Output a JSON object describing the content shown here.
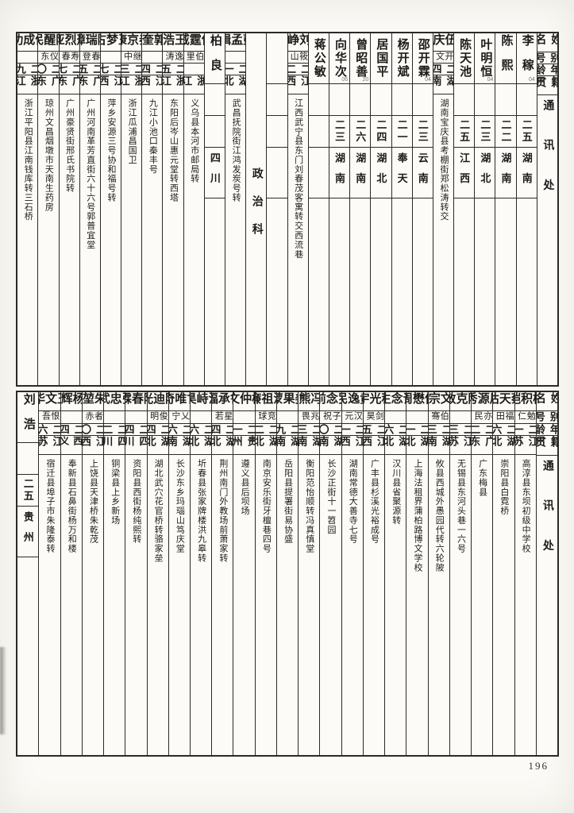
{
  "page": {
    "page_number": "196"
  },
  "headers": [
    "姓名",
    "别号",
    "年龄",
    "籍贯",
    "通讯处"
  ],
  "section": {
    "label": "政治科"
  },
  "top_table": {
    "columns": [
      {
        "name": "李稼",
        "mark": "04",
        "alias": "",
        "age": "二五",
        "native": "湖南",
        "address": ""
      },
      {
        "name": "陈熙",
        "alias": "",
        "age": "二二",
        "native": "湖南",
        "address": ""
      },
      {
        "name": "叶明恒",
        "mark": "04",
        "alias": "",
        "age": "二三",
        "native": "湖北",
        "address": ""
      },
      {
        "name": "陈天池",
        "alias": "",
        "age": "二五",
        "native": "江西",
        "address": ""
      },
      {
        "name": "伍庆",
        "alias": "开文",
        "age": "二四",
        "native": "湖南",
        "address": "湖南宝庆县考棚街郑松涛转交"
      },
      {
        "name": "邵开霖",
        "mark": "04",
        "alias": "",
        "age": "二三",
        "native": "云南",
        "address": ""
      },
      {
        "name": "杨开斌",
        "alias": "",
        "age": "二一",
        "native": "奉天",
        "address": ""
      },
      {
        "name": "居国平",
        "alias": "",
        "age": "二四",
        "native": "湖北",
        "address": ""
      },
      {
        "name": "曾昭善",
        "mark": "20",
        "alias": "",
        "age": "二六",
        "native": "湖南",
        "address": ""
      },
      {
        "name": "向华次",
        "mark": "06",
        "alias": "",
        "age": "二三",
        "native": "湖南",
        "address": ""
      },
      {
        "name": "蒋公敏",
        "alias": "",
        "age": "",
        "native": "",
        "address": ""
      },
      {
        "name": "刘峥",
        "alias": "筱山",
        "age": "二二",
        "native": "江西",
        "address": "江西武宁县东门刘春茂客寓转交西流巷"
      },
      {
        "type": "blank"
      },
      {
        "type": "divider",
        "label": "政治科"
      },
      {
        "name": "彭孟缉",
        "alias": "",
        "age": "二一",
        "native": "湖北",
        "address": "武昌抚院街江鸿发炭号转"
      },
      {
        "name": "柏良",
        "alias": "",
        "age": "",
        "native": "四川",
        "address": ""
      },
      {
        "name": "何霆威",
        "alias": "伯里",
        "age": "",
        "native": "浙江",
        "address": "义乌县本河市邮局转"
      },
      {
        "name": "王浩",
        "alias": "逸涛",
        "age": "二五",
        "native": "浙江",
        "address": "东阳后岑山惠元堂转西塔"
      },
      {
        "name": "郭奎",
        "alias": "",
        "age": "二四",
        "native": "江西",
        "address": "九江小池口秦丰号"
      },
      {
        "name": "秦京康",
        "alias": "继中",
        "age": "二三",
        "native": "浙江",
        "address": "浙江瓜浦昌国卫"
      },
      {
        "name": "王梦古",
        "alias": "",
        "age": "二七",
        "native": "江西",
        "address": "萍乡安源三号协和福号转"
      },
      {
        "name": "陈瑞璋",
        "alias": "春登",
        "age": "二五",
        "native": "广东",
        "address": "广州河南革芳直街六十六号郭普宜堂"
      },
      {
        "name": "邢烈亚",
        "alias": "寿春",
        "age": "二七",
        "native": "广东",
        "address": "广州豪贤街邢氏书院转"
      },
      {
        "name": "陈醒民",
        "alias": "仪东",
        "age": "二〇",
        "native": "广东",
        "address": "琼州文昌烟墩市天南生药房"
      },
      {
        "name": "何成功",
        "alias": "",
        "age": "二九",
        "native": "浙江",
        "address": "浙江平阳县江南钱库转三石桥"
      }
    ]
  },
  "bottom_table": {
    "columns": [
      {
        "name": "杨积恺",
        "alias": "勉仁",
        "age": "二一",
        "native": "江苏",
        "address": "高淳县东坝初级中学校"
      },
      {
        "name": "蔡天枯",
        "alias": "福田",
        "age": "二六",
        "native": "湖北",
        "address": "崇阳县白霓桥"
      },
      {
        "name": "周源秀",
        "alias": "亦民",
        "age": "二二",
        "native": "广东",
        "address": "广东梅县"
      },
      {
        "name": "陈克敏",
        "alias": "",
        "age": "二三",
        "native": "江苏",
        "address": "无锡县东河头巷一六号"
      },
      {
        "name": "文宗",
        "alias": "伯骞",
        "age": "二三",
        "native": "湖南",
        "address": "攸县西城外愚园代转六轮陂"
      },
      {
        "name": "何懋周",
        "alias": "",
        "age": "二一",
        "native": "湖北",
        "address": "上海法租界蒲柏路博文学校"
      },
      {
        "name": "谭念生",
        "alias": "",
        "age": "二六",
        "native": "湖北",
        "address": "汉川县省聚源转"
      },
      {
        "name": "程光宇",
        "alias": "剑昊",
        "age": "二五",
        "native": "江西",
        "address": "广丰县杉溪光裕成号"
      },
      {
        "name": "黄逸民",
        "alias": "汉元",
        "age": "二一",
        "native": "江西",
        "address": "湖南常德大善寺七号"
      },
      {
        "name": "罗念前",
        "alias": "子祝",
        "age": "二〇",
        "native": "湖南",
        "address": "长沙正街十一笤园"
      },
      {
        "name": "冯熊",
        "alias": "兆畏",
        "age": "二三",
        "native": "湖南",
        "address": "衡阳范怡顺转冯真慎堂"
      },
      {
        "name": "姜果蒙",
        "alias": "",
        "age": "二九",
        "native": "湖南",
        "address": "岳阳县提署街易协盛"
      },
      {
        "name": "潘祖廉",
        "alias": "竞球",
        "age": "二二",
        "native": "湖北",
        "address": "南京安乐街牙檀巷四号"
      },
      {
        "name": "杨仲文",
        "alias": "",
        "age": "二一",
        "native": "贵州",
        "address": "遵义县后坝场"
      },
      {
        "name": "鲁承福",
        "alias": "星若",
        "age": "二四",
        "native": "湖北",
        "address": "荆州南门外教场前萧家转"
      },
      {
        "name": "洪峙昊",
        "alias": "",
        "age": "二六",
        "native": "湖北",
        "address": "圻春县张家牌楼洪九皋转"
      },
      {
        "name": "甘唯奇",
        "alias": "乂宁",
        "age": "二六",
        "native": "湖南",
        "address": "长沙东乡玛瑙山笃庆堂"
      },
      {
        "name": "陈迪光",
        "alias": "俊明",
        "age": "二四",
        "native": "湖北",
        "address": "湖北武穴花官桥转骆家垒"
      },
      {
        "name": "陈春霖",
        "alias": "",
        "age": "二四",
        "native": "四川",
        "address": "资阳县西街杨纯熙转"
      },
      {
        "name": "张忠武",
        "alias": "",
        "age": "二二",
        "native": "四川",
        "address": "铜梁县上乡新场"
      },
      {
        "name": "朱堃",
        "alias": "者赤",
        "age": "二〇",
        "native": "江西",
        "address": "上饶县天津桥朱乾茂"
      },
      {
        "name": "杨辉",
        "alias": "",
        "age": "二四",
        "native": "江西义安",
        "address": "奉新县石鼻街杨万和楼"
      },
      {
        "name": "王文华",
        "alias": "恨吾",
        "age": "二六",
        "native": "江苏",
        "address": "宿迁县埠子市朱隆泰转"
      },
      {
        "name": "刘浩",
        "alias": "",
        "age": "二五",
        "native": "贵州",
        "address": ""
      }
    ]
  }
}
